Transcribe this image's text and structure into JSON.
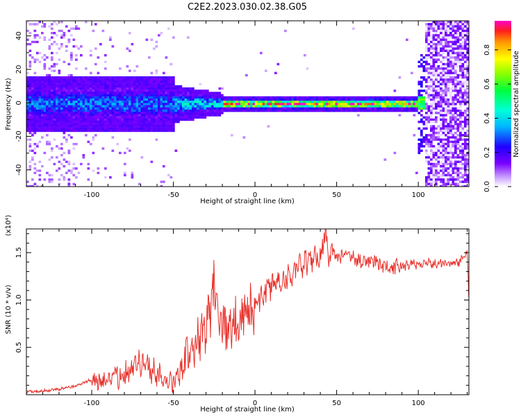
{
  "title": "C2E2.2023.030.02.38.G05",
  "chart_data": [
    {
      "type": "heatmap",
      "xlabel": "Height of straight line (km)",
      "ylabel": "Frequency (Hz)",
      "xlim": [
        -140,
        131
      ],
      "ylim": [
        -50,
        49
      ],
      "x_ticks": [
        -100,
        -50,
        0,
        50,
        100
      ],
      "y_ticks": [
        -40,
        -20,
        0,
        20,
        40
      ],
      "colorbar": {
        "label": "Normalized spectral amplitude",
        "range": [
          0.0,
          0.97
        ],
        "ticks": [
          0.0,
          0.2,
          0.4,
          0.6,
          0.8
        ]
      },
      "regions": [
        {
          "x_range": [
            -140,
            -50
          ],
          "freq_spread": 14,
          "amplitude": "low-mid"
        },
        {
          "x_range": [
            -50,
            -20
          ],
          "freq_spread": 8,
          "amplitude": "mid"
        },
        {
          "x_range": [
            -20,
            99
          ],
          "freq_spread": 3,
          "amplitude": "high"
        },
        {
          "x_range": [
            104,
            131
          ],
          "freq_spread": 50,
          "amplitude": "low"
        }
      ]
    },
    {
      "type": "line",
      "xlabel": "Height of straight line (km)",
      "ylabel": "SNR (10 * v/v)",
      "y_multiplier": "(x10⁴)",
      "xlim": [
        -140,
        131
      ],
      "ylim": [
        0,
        1.75
      ],
      "x_ticks": [
        -100,
        -50,
        0,
        50,
        100
      ],
      "y_ticks": [
        0.5,
        1.0,
        1.5
      ],
      "y_tick_labels": [
        "0.5",
        "1.0",
        "1.5"
      ],
      "series": [
        {
          "color": "#e8302a",
          "x": [
            -140,
            -130,
            -120,
            -110,
            -100,
            -95,
            -90,
            -80,
            -75,
            -70,
            -65,
            -60,
            -55,
            -50,
            -45,
            -40,
            -35,
            -30,
            -26,
            -24,
            -22,
            -20,
            -15,
            -10,
            -5,
            0,
            5,
            10,
            15,
            20,
            25,
            30,
            35,
            40,
            43,
            45,
            50,
            55,
            60,
            65,
            70,
            75,
            80,
            85,
            90,
            95,
            100,
            105,
            110,
            115,
            120,
            125,
            128,
            130,
            131
          ],
          "y": [
            0.03,
            0.04,
            0.06,
            0.09,
            0.16,
            0.12,
            0.15,
            0.23,
            0.32,
            0.36,
            0.28,
            0.22,
            0.16,
            0.12,
            0.25,
            0.5,
            0.6,
            0.7,
            1.02,
            1.3,
            0.8,
            0.75,
            0.7,
            0.8,
            0.85,
            0.95,
            1.05,
            1.15,
            1.2,
            1.25,
            1.3,
            1.38,
            1.42,
            1.46,
            1.7,
            1.5,
            1.45,
            1.48,
            1.44,
            1.42,
            1.4,
            1.38,
            1.36,
            1.35,
            1.36,
            1.38,
            1.37,
            1.4,
            1.38,
            1.39,
            1.38,
            1.4,
            1.45,
            1.5,
            1.0
          ]
        }
      ]
    }
  ]
}
